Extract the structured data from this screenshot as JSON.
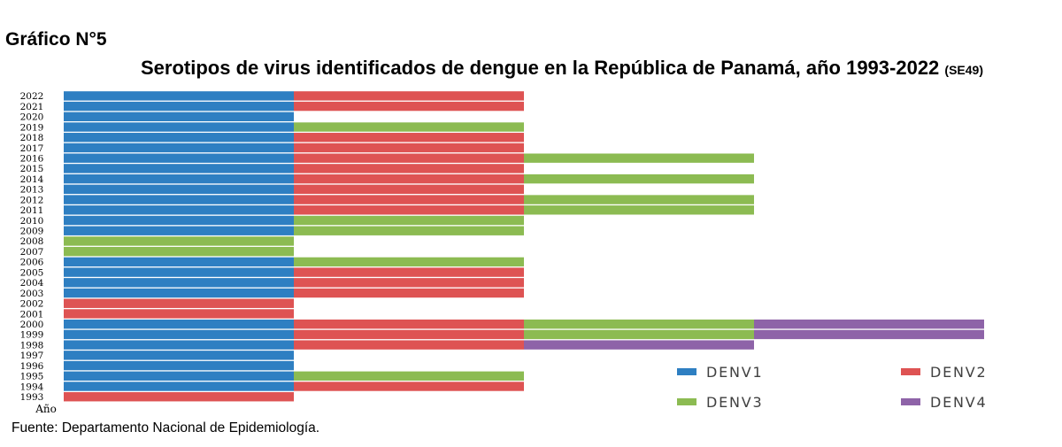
{
  "header": {
    "label": "Gráfico N°5",
    "title": "Serotipos de virus identificados de dengue en la República de Panamá, año 1993-2022",
    "title_suffix": "(SE49)"
  },
  "footer": {
    "source": "Fuente: Departamento Nacional de Epidemiología."
  },
  "chart_data": {
    "type": "bar",
    "orientation": "horizontal",
    "stacked": true,
    "title": "Serotipos de virus identificados de dengue en la República de Panamá, año 1993-2022 (SE49)",
    "xlabel": "",
    "ylabel": "Año",
    "grid": false,
    "legend_position": "bottom-right",
    "colors": {
      "DENV1": "#2e7fc2",
      "DENV2": "#de5353",
      "DENV3": "#8cbb52",
      "DENV4": "#8e63a8"
    },
    "legend": [
      "DENV1",
      "DENV2",
      "DENV3",
      "DENV4"
    ],
    "rows": [
      {
        "year": "2022",
        "serotypes": [
          "DENV1",
          "DENV2"
        ]
      },
      {
        "year": "2021",
        "serotypes": [
          "DENV1",
          "DENV2"
        ]
      },
      {
        "year": "2020",
        "serotypes": [
          "DENV1"
        ]
      },
      {
        "year": "2019",
        "serotypes": [
          "DENV1",
          "DENV3"
        ]
      },
      {
        "year": "2018",
        "serotypes": [
          "DENV1",
          "DENV2"
        ]
      },
      {
        "year": "2017",
        "serotypes": [
          "DENV1",
          "DENV2"
        ]
      },
      {
        "year": "2016",
        "serotypes": [
          "DENV1",
          "DENV2",
          "DENV3"
        ]
      },
      {
        "year": "2015",
        "serotypes": [
          "DENV1",
          "DENV2"
        ]
      },
      {
        "year": "2014",
        "serotypes": [
          "DENV1",
          "DENV2",
          "DENV3"
        ]
      },
      {
        "year": "2013",
        "serotypes": [
          "DENV1",
          "DENV2"
        ]
      },
      {
        "year": "2012",
        "serotypes": [
          "DENV1",
          "DENV2",
          "DENV3"
        ]
      },
      {
        "year": "2011",
        "serotypes": [
          "DENV1",
          "DENV2",
          "DENV3"
        ]
      },
      {
        "year": "2010",
        "serotypes": [
          "DENV1",
          "DENV3"
        ]
      },
      {
        "year": "2009",
        "serotypes": [
          "DENV1",
          "DENV3"
        ]
      },
      {
        "year": "2008",
        "serotypes": [
          "DENV3"
        ]
      },
      {
        "year": "2007",
        "serotypes": [
          "DENV3"
        ]
      },
      {
        "year": "2006",
        "serotypes": [
          "DENV1",
          "DENV3"
        ]
      },
      {
        "year": "2005",
        "serotypes": [
          "DENV1",
          "DENV2"
        ]
      },
      {
        "year": "2004",
        "serotypes": [
          "DENV1",
          "DENV2"
        ]
      },
      {
        "year": "2003",
        "serotypes": [
          "DENV1",
          "DENV2"
        ]
      },
      {
        "year": "2002",
        "serotypes": [
          "DENV2"
        ]
      },
      {
        "year": "2001",
        "serotypes": [
          "DENV2"
        ]
      },
      {
        "year": "2000",
        "serotypes": [
          "DENV1",
          "DENV2",
          "DENV3",
          "DENV4"
        ]
      },
      {
        "year": "1999",
        "serotypes": [
          "DENV1",
          "DENV2",
          "DENV3",
          "DENV4"
        ]
      },
      {
        "year": "1998",
        "serotypes": [
          "DENV1",
          "DENV2",
          "DENV4"
        ]
      },
      {
        "year": "1997",
        "serotypes": [
          "DENV1"
        ]
      },
      {
        "year": "1996",
        "serotypes": [
          "DENV1"
        ]
      },
      {
        "year": "1995",
        "serotypes": [
          "DENV1",
          "DENV3"
        ]
      },
      {
        "year": "1994",
        "serotypes": [
          "DENV1",
          "DENV2"
        ]
      },
      {
        "year": "1993",
        "serotypes": [
          "DENV2"
        ]
      }
    ]
  }
}
